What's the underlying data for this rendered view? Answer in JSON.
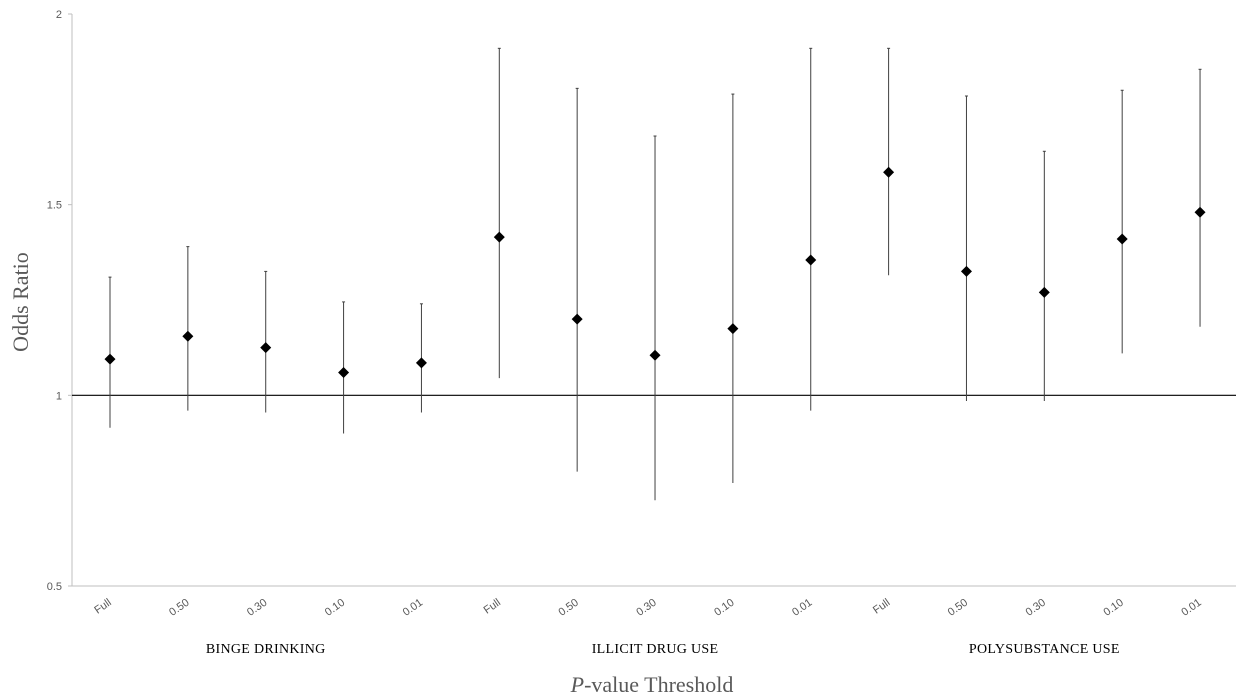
{
  "chart_data": {
    "type": "scatter",
    "title": "",
    "ylabel": "Odds Ratio",
    "xlabel_italic": "P",
    "xlabel_rest": "-value Threshold",
    "ylim": [
      0.5,
      2
    ],
    "y_ticks": [
      0.5,
      1,
      1.5,
      2
    ],
    "y_tick_labels": [
      "0.5",
      "1",
      "1.5",
      "2"
    ],
    "reference_line": 1,
    "grid": false,
    "groups": [
      {
        "name": "BINGE DRINKING",
        "points": [
          {
            "threshold": "Full",
            "or": 1.095,
            "lower": 0.915,
            "upper": 1.31
          },
          {
            "threshold": "0.50",
            "or": 1.155,
            "lower": 0.96,
            "upper": 1.39
          },
          {
            "threshold": "0.30",
            "or": 1.125,
            "lower": 0.955,
            "upper": 1.325
          },
          {
            "threshold": "0.10",
            "or": 1.06,
            "lower": 0.9,
            "upper": 1.245
          },
          {
            "threshold": "0.01",
            "or": 1.085,
            "lower": 0.955,
            "upper": 1.24
          }
        ]
      },
      {
        "name": "ILLICIT DRUG USE",
        "points": [
          {
            "threshold": "Full",
            "or": 1.415,
            "lower": 1.045,
            "upper": 1.91
          },
          {
            "threshold": "0.50",
            "or": 1.2,
            "lower": 0.8,
            "upper": 1.805
          },
          {
            "threshold": "0.30",
            "or": 1.105,
            "lower": 0.725,
            "upper": 1.68
          },
          {
            "threshold": "0.10",
            "or": 1.175,
            "lower": 0.77,
            "upper": 1.79
          },
          {
            "threshold": "0.01",
            "or": 1.355,
            "lower": 0.96,
            "upper": 1.91
          }
        ]
      },
      {
        "name": "POLYSUBSTANCE USE",
        "points": [
          {
            "threshold": "Full",
            "or": 1.585,
            "lower": 1.315,
            "upper": 1.91
          },
          {
            "threshold": "0.50",
            "or": 1.325,
            "lower": 0.985,
            "upper": 1.785
          },
          {
            "threshold": "0.30",
            "or": 1.27,
            "lower": 0.985,
            "upper": 1.64
          },
          {
            "threshold": "0.10",
            "or": 1.41,
            "lower": 1.11,
            "upper": 1.8
          },
          {
            "threshold": "0.01",
            "or": 1.48,
            "lower": 1.18,
            "upper": 1.855
          }
        ]
      }
    ],
    "colors": {
      "marker": "#000000",
      "error_bar": "#404040",
      "axis": "#bfbfbf",
      "reference": "#000000",
      "tick_text": "#595959"
    }
  }
}
